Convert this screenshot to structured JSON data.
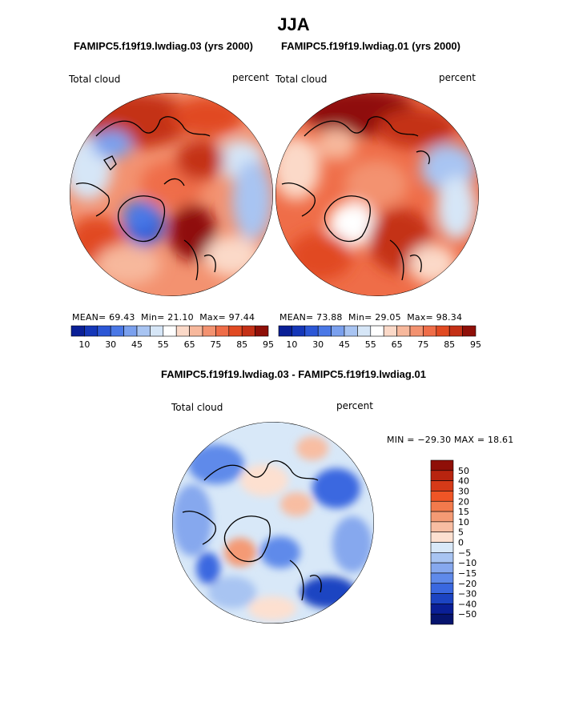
{
  "page": {
    "title": "JJA",
    "case1_title": "FAMIPC5.f19f19.lwdiag.03 (yrs 2000)",
    "case2_title": "FAMIPC5.f19f19.lwdiag.01 (yrs 2000)",
    "diff_title": "FAMIPC5.f19f19.lwdiag.03 - FAMIPC5.f19f19.lwdiag.01"
  },
  "panels": {
    "left": {
      "variable": "Total cloud",
      "units": "percent",
      "mean_label": "MEAN=",
      "mean": "69.43",
      "min_label": "Min=",
      "min": "21.10",
      "max_label": "Max=",
      "max": "97.44"
    },
    "right": {
      "variable": "Total cloud",
      "units": "percent",
      "mean_label": "MEAN=",
      "mean": "73.88",
      "min_label": "Min=",
      "min": "29.05",
      "max_label": "Max=",
      "max": "98.34"
    },
    "diff": {
      "variable": "Total cloud",
      "units": "percent",
      "minmax_text": "MIN = −29.30 MAX =  18.61"
    }
  },
  "chart_data": [
    {
      "type": "heatmap",
      "projection": "north polar stereographic",
      "title": "FAMIPC5.f19f19.lwdiag.03 (yrs 2000)",
      "variable": "Total cloud",
      "units": "percent",
      "stats": {
        "mean": 69.43,
        "min": 21.1,
        "max": 97.44
      },
      "colorbar_levels": [
        10,
        30,
        45,
        55,
        65,
        75,
        85,
        95
      ],
      "colorbar_tick_labels": [
        "10",
        "30",
        "45",
        "55",
        "65",
        "75",
        "85",
        "95"
      ],
      "colorbar_colors": [
        "#0a1f96",
        "#1537b8",
        "#2c57d6",
        "#4a78e6",
        "#7aa0ee",
        "#a8c4f2",
        "#d6e6f7",
        "#ffffff",
        "#fbd9c8",
        "#f7b89c",
        "#f39270",
        "#ef6d48",
        "#e14a22",
        "#c43016",
        "#8f0f08"
      ]
    },
    {
      "type": "heatmap",
      "projection": "north polar stereographic",
      "title": "FAMIPC5.f19f19.lwdiag.01 (yrs 2000)",
      "variable": "Total cloud",
      "units": "percent",
      "stats": {
        "mean": 73.88,
        "min": 29.05,
        "max": 98.34
      },
      "colorbar_levels": [
        10,
        30,
        45,
        55,
        65,
        75,
        85,
        95
      ],
      "colorbar_tick_labels": [
        "10",
        "30",
        "45",
        "55",
        "65",
        "75",
        "85",
        "95"
      ],
      "colorbar_colors": [
        "#0a1f96",
        "#1537b8",
        "#2c57d6",
        "#4a78e6",
        "#7aa0ee",
        "#a8c4f2",
        "#d6e6f7",
        "#ffffff",
        "#fbd9c8",
        "#f7b89c",
        "#f39270",
        "#ef6d48",
        "#e14a22",
        "#c43016",
        "#8f0f08"
      ]
    },
    {
      "type": "heatmap",
      "projection": "north polar stereographic",
      "title": "FAMIPC5.f19f19.lwdiag.03 - FAMIPC5.f19f19.lwdiag.01",
      "variable": "Total cloud",
      "units": "percent",
      "stats": {
        "min": -29.3,
        "max": 18.61
      },
      "colorbar_levels": [
        50,
        40,
        30,
        20,
        15,
        10,
        5,
        0,
        -5,
        -10,
        -15,
        -20,
        -30,
        -40,
        -50
      ],
      "colorbar_tick_labels": [
        "50",
        "40",
        "30",
        "20",
        "15",
        "10",
        "5",
        "0",
        "−5",
        "−10",
        "−15",
        "−20",
        "−30",
        "−40",
        "−50"
      ],
      "colorbar_colors": [
        "#8f0f08",
        "#b8240f",
        "#d63a18",
        "#ef5526",
        "#f27a4c",
        "#f49a74",
        "#f8bda2",
        "#fde0d0",
        "#d8e8f8",
        "#a8c4f2",
        "#86a8ee",
        "#5f8aea",
        "#3a68e0",
        "#1c44c2",
        "#0a1f96",
        "#06146e"
      ]
    }
  ]
}
